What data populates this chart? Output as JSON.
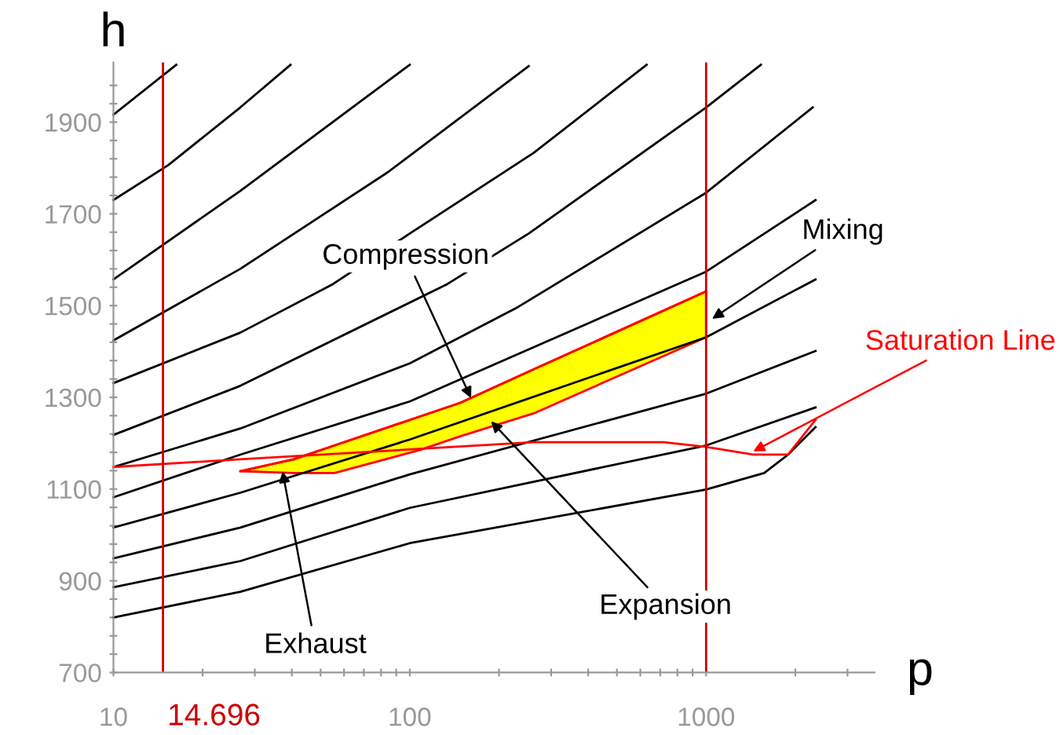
{
  "chart_data": {
    "type": "line",
    "xlabel": "p",
    "ylabel": "h",
    "log": "x",
    "xlim": [
      10,
      3700
    ],
    "ylim": [
      700,
      2030
    ],
    "xticks": [
      10,
      {
        "value": 20,
        "label": null
      },
      {
        "value": 30,
        "label": null
      },
      {
        "value": 40,
        "label": null
      },
      {
        "value": 50,
        "label": null
      },
      {
        "value": 60,
        "label": null
      },
      {
        "value": 70,
        "label": null
      },
      {
        "value": 80,
        "label": null
      },
      {
        "value": 90,
        "label": null
      },
      100,
      {
        "value": 200,
        "label": null
      },
      {
        "value": 300,
        "label": null
      },
      {
        "value": 400,
        "label": null
      },
      {
        "value": 500,
        "label": null
      },
      {
        "value": 600,
        "label": null
      },
      {
        "value": 700,
        "label": null
      },
      {
        "value": 800,
        "label": null
      },
      {
        "value": 900,
        "label": null
      },
      1000,
      {
        "value": 2000,
        "label": null
      },
      {
        "value": 3000,
        "label": null
      }
    ],
    "yticks": [
      700,
      {
        "value": 740,
        "label": null
      },
      {
        "value": 780,
        "label": null
      },
      {
        "value": 820,
        "label": null
      },
      {
        "value": 860,
        "label": null
      },
      900,
      {
        "value": 940,
        "label": null
      },
      {
        "value": 980,
        "label": null
      },
      {
        "value": 1020,
        "label": null
      },
      {
        "value": 1060,
        "label": null
      },
      1100,
      {
        "value": 1140,
        "label": null
      },
      {
        "value": 1180,
        "label": null
      },
      {
        "value": 1220,
        "label": null
      },
      {
        "value": 1260,
        "label": null
      },
      1300,
      {
        "value": 1340,
        "label": null
      },
      {
        "value": 1380,
        "label": null
      },
      {
        "value": 1420,
        "label": null
      },
      {
        "value": 1460,
        "label": null
      },
      1500,
      {
        "value": 1540,
        "label": null
      },
      {
        "value": 1580,
        "label": null
      },
      {
        "value": 1620,
        "label": null
      },
      {
        "value": 1660,
        "label": null
      },
      1700,
      {
        "value": 1740,
        "label": null
      },
      {
        "value": 1780,
        "label": null
      },
      {
        "value": 1820,
        "label": null
      },
      {
        "value": 1860,
        "label": null
      },
      1900,
      {
        "value": 1940,
        "label": null
      },
      {
        "value": 1980,
        "label": null
      }
    ],
    "grid": false,
    "legend": false,
    "marker": "none",
    "line_style": "solid",
    "series": [
      {
        "type": "line",
        "color": "#ff0000",
        "x": [
          26.8,
          40.6,
          55.7,
          108,
          148,
          262,
          1000
        ],
        "values": [
          1139,
          1165,
          1195,
          1258,
          1288,
          1361,
          1531
        ],
        "lower": [
          1139,
          1135,
          1135,
          1185,
          1215,
          1265,
          1431
        ],
        "upper": [
          1139,
          1165,
          1195,
          1258,
          1288,
          1361,
          1531
        ]
      },
      {
        "color": "#000000",
        "x": [
          10,
          16.3
        ],
        "values": [
          1916,
          2025
        ]
      },
      {
        "color": "#000000",
        "x": [
          10,
          15.3,
          26.8,
          39.6
        ],
        "values": [
          1730,
          1806,
          1932,
          2025
        ]
      },
      {
        "color": "#000000",
        "x": [
          10,
          26.8,
          100
        ],
        "values": [
          1557,
          1750,
          2025
        ]
      },
      {
        "color": "#000000",
        "x": [
          10,
          26.8,
          84,
          252
        ],
        "values": [
          1424,
          1580,
          1790,
          2022
        ]
      },
      {
        "color": "#000000",
        "x": [
          10,
          26.8,
          55.1,
          100,
          262,
          630
        ],
        "values": [
          1331,
          1441,
          1547,
          1657,
          1833,
          2025
        ]
      },
      {
        "color": "#000000",
        "x": [
          10,
          26.8,
          134,
          252,
          1000,
          1530
        ],
        "values": [
          1218,
          1325,
          1547,
          1657,
          1932,
          2025
        ]
      },
      {
        "color": "#000000",
        "x": [
          10,
          26.8,
          100,
          232,
          1000,
          2290
        ],
        "values": [
          1148,
          1232,
          1374,
          1497,
          1746,
          1932
        ]
      },
      {
        "color": "#000000",
        "x": [
          10,
          26.8,
          100,
          1000,
          2340
        ],
        "values": [
          1082,
          1175,
          1291,
          1574,
          1730
        ]
      },
      {
        "color": "#000000",
        "x": [
          10,
          26.8,
          100,
          1000,
          2340
        ],
        "values": [
          1016,
          1092,
          1208,
          1431,
          1557
        ]
      },
      {
        "color": "#000000",
        "x": [
          10,
          26.8,
          100,
          1000,
          2340
        ],
        "values": [
          949,
          1016,
          1132,
          1308,
          1401
        ]
      },
      {
        "color": "#000000",
        "x": [
          10,
          26.8,
          100,
          1000,
          2340
        ],
        "values": [
          886,
          943,
          1059,
          1195,
          1278
        ]
      },
      {
        "color": "#000000",
        "x": [
          10,
          26.8,
          100,
          1000,
          1570,
          1890,
          2340
        ],
        "values": [
          820,
          876,
          982,
          1099,
          1135,
          1175,
          1235
        ]
      },
      {
        "color": "#ff0000",
        "x": [
          10,
          26.8,
          262,
          719,
          1000,
          1440,
          1890,
          2340
        ],
        "values": [
          1148,
          1165,
          1202,
          1202,
          1192,
          1175,
          1175,
          1251
        ]
      }
    ],
    "ref_lines": [
      {
        "axis": "x",
        "value": 14.696,
        "label": "14.696",
        "color": "#cc0000"
      },
      {
        "axis": "x",
        "value": 1000,
        "label": null,
        "color": "#cc0000"
      }
    ],
    "annotations": [
      {
        "text": "Compression",
        "x": 161,
        "y": 1298
      },
      {
        "text": "Expansion",
        "x": 188,
        "y": 1248
      },
      {
        "text": "Exhaust",
        "x": 37.2,
        "y": 1139
      },
      {
        "text": "Mixing",
        "x": 1047,
        "y": 1471
      },
      {
        "text": "Saturation Line",
        "x": 1442,
        "y": 1182
      }
    ]
  }
}
